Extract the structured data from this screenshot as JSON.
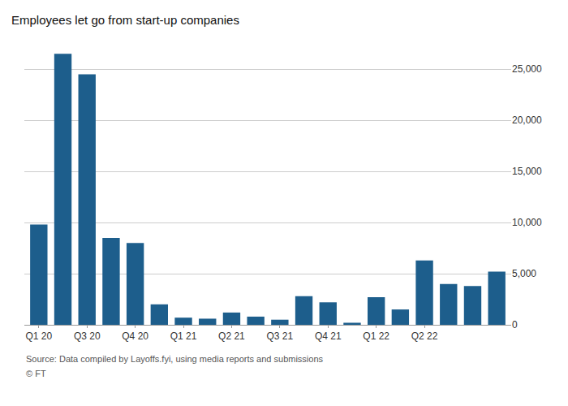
{
  "chart_data": {
    "type": "bar",
    "title": "Employees let go from start-up companies",
    "annotations": [
      "Source: Data compiled by Layoffs.fyi, using media reports and submissions",
      "© FT"
    ],
    "categories": [
      "Q1 20",
      null,
      "Q3 20",
      null,
      "Q4 20",
      null,
      "Q1 21",
      null,
      "Q2 21",
      null,
      "Q3 21",
      null,
      "Q4 21",
      null,
      "Q1 22",
      null,
      "Q2 22",
      null,
      null,
      null
    ],
    "values": [
      9800,
      26500,
      24500,
      8500,
      8000,
      2000,
      700,
      600,
      1200,
      800,
      500,
      2800,
      2200,
      200,
      2700,
      1500,
      6300,
      4000,
      3800,
      5200
    ],
    "color": "#1d5e8c",
    "ylim": [
      0,
      27000
    ],
    "yticks": [
      0,
      {
        "value": 5000,
        "label": "5,000"
      },
      {
        "value": 10000,
        "label": "10,000"
      },
      {
        "value": 15000,
        "label": "15,000"
      },
      {
        "value": 20000,
        "label": "20,000"
      },
      {
        "value": 25000,
        "label": "25,000"
      }
    ],
    "grid": true
  }
}
